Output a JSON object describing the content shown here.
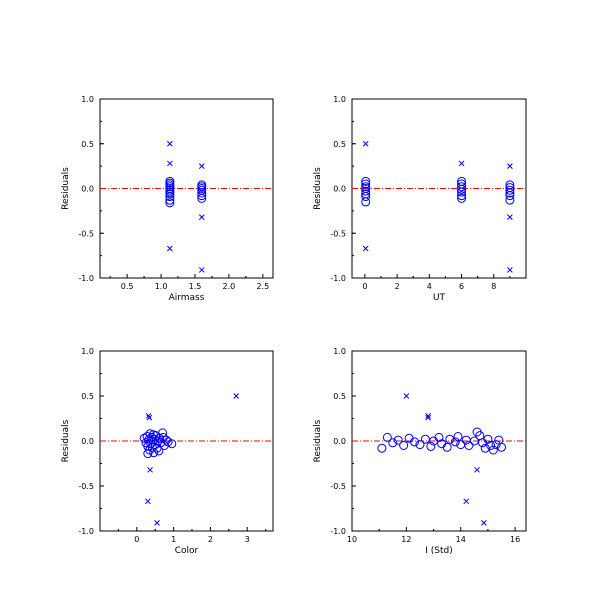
{
  "colors": {
    "marker": "#0000ff",
    "zero_line": "#ff0000",
    "axes": "#000000"
  },
  "chart_data": [
    {
      "type": "scatter",
      "xlabel": "Airmass",
      "ylabel": "Residuals",
      "xlim": [
        0.1,
        2.65
      ],
      "ylim": [
        -1.0,
        1.0
      ],
      "xticks": [
        "0.5",
        "1.0",
        "1.5",
        "2.0",
        "2.5"
      ],
      "xtick_values": [
        0.5,
        1.0,
        1.5,
        2.0,
        2.5
      ],
      "yticks": [
        "1.0",
        "0.5",
        "0.0",
        "-0.5",
        "-1.0"
      ],
      "ytick_values": [
        1.0,
        0.5,
        0.0,
        -0.5,
        -1.0
      ],
      "zero_line": 0.0,
      "series": [
        {
          "marker": "circle",
          "points": [
            [
              1.13,
              0.08
            ],
            [
              1.13,
              0.06
            ],
            [
              1.13,
              0.04
            ],
            [
              1.13,
              0.02
            ],
            [
              1.13,
              0.0
            ],
            [
              1.13,
              -0.02
            ],
            [
              1.13,
              -0.04
            ],
            [
              1.13,
              -0.06
            ],
            [
              1.13,
              -0.09
            ],
            [
              1.13,
              -0.13
            ],
            [
              1.13,
              -0.16
            ],
            [
              1.6,
              0.04
            ],
            [
              1.6,
              0.02
            ],
            [
              1.6,
              0.0
            ],
            [
              1.6,
              -0.02
            ],
            [
              1.6,
              -0.05
            ],
            [
              1.6,
              -0.08
            ],
            [
              1.6,
              -0.11
            ]
          ]
        },
        {
          "marker": "cross",
          "points": [
            [
              1.13,
              0.5
            ],
            [
              1.13,
              0.28
            ],
            [
              1.13,
              -0.67
            ],
            [
              1.6,
              0.25
            ],
            [
              1.6,
              -0.32
            ],
            [
              1.6,
              -0.91
            ]
          ]
        }
      ]
    },
    {
      "type": "scatter",
      "xlabel": "UT",
      "ylabel": "Residuals",
      "xlim": [
        -0.8,
        10.0
      ],
      "ylim": [
        -1.0,
        1.0
      ],
      "xticks": [
        "0",
        "2",
        "4",
        "6",
        "8"
      ],
      "xtick_values": [
        0,
        2,
        4,
        6,
        8
      ],
      "yticks": [
        "1.0",
        "0.5",
        "0.0",
        "-0.5",
        "-1.0"
      ],
      "ytick_values": [
        1.0,
        0.5,
        0.0,
        -0.5,
        -1.0
      ],
      "zero_line": 0.0,
      "series": [
        {
          "marker": "circle",
          "points": [
            [
              0.05,
              0.08
            ],
            [
              0.05,
              0.05
            ],
            [
              0.05,
              0.02
            ],
            [
              0.05,
              0.0
            ],
            [
              0.05,
              -0.03
            ],
            [
              0.05,
              -0.06
            ],
            [
              0.05,
              -0.09
            ],
            [
              0.05,
              -0.15
            ],
            [
              6.0,
              0.08
            ],
            [
              6.0,
              0.05
            ],
            [
              6.0,
              0.02
            ],
            [
              6.0,
              -0.01
            ],
            [
              6.0,
              -0.04
            ],
            [
              6.0,
              -0.08
            ],
            [
              6.0,
              -0.11
            ],
            [
              9.0,
              0.04
            ],
            [
              9.0,
              0.01
            ],
            [
              9.0,
              -0.02
            ],
            [
              9.0,
              -0.05
            ],
            [
              9.0,
              -0.08
            ],
            [
              9.0,
              -0.13
            ]
          ]
        },
        {
          "marker": "cross",
          "points": [
            [
              0.05,
              0.5
            ],
            [
              0.05,
              -0.67
            ],
            [
              6.0,
              0.28
            ],
            [
              9.0,
              0.25
            ],
            [
              9.0,
              -0.32
            ],
            [
              9.0,
              -0.91
            ]
          ]
        }
      ]
    },
    {
      "type": "scatter",
      "xlabel": "Color",
      "ylabel": "Residuals",
      "xlim": [
        -1.0,
        3.7
      ],
      "ylim": [
        -1.0,
        1.0
      ],
      "xticks": [
        "0",
        "1",
        "2",
        "3"
      ],
      "xtick_values": [
        0,
        1,
        2,
        3
      ],
      "yticks": [
        "1.0",
        "0.5",
        "0.0",
        "-0.5",
        "-1.0"
      ],
      "ytick_values": [
        1.0,
        0.5,
        0.0,
        -0.5,
        -1.0
      ],
      "zero_line": 0.0,
      "series": [
        {
          "marker": "circle",
          "points": [
            [
              0.2,
              0.03
            ],
            [
              0.25,
              -0.02
            ],
            [
              0.28,
              0.05
            ],
            [
              0.3,
              -0.06
            ],
            [
              0.32,
              0.01
            ],
            [
              0.35,
              -0.1
            ],
            [
              0.36,
              0.08
            ],
            [
              0.38,
              -0.03
            ],
            [
              0.4,
              0.04
            ],
            [
              0.42,
              -0.07
            ],
            [
              0.44,
              0.0
            ],
            [
              0.46,
              -0.13
            ],
            [
              0.48,
              0.02
            ],
            [
              0.5,
              -0.04
            ],
            [
              0.52,
              0.06
            ],
            [
              0.55,
              -0.08
            ],
            [
              0.58,
              0.0
            ],
            [
              0.6,
              -0.11
            ],
            [
              0.62,
              0.03
            ],
            [
              0.65,
              -0.02
            ],
            [
              0.7,
              0.09
            ],
            [
              0.72,
              0.04
            ],
            [
              0.75,
              -0.05
            ],
            [
              0.8,
              0.01
            ],
            [
              0.85,
              -0.01
            ],
            [
              0.95,
              -0.03
            ],
            [
              0.3,
              -0.14
            ],
            [
              0.45,
              0.07
            ]
          ]
        },
        {
          "marker": "cross",
          "points": [
            [
              0.32,
              0.28
            ],
            [
              0.34,
              0.26
            ],
            [
              0.36,
              -0.32
            ],
            [
              0.3,
              -0.67
            ],
            [
              0.55,
              -0.91
            ],
            [
              2.7,
              0.5
            ]
          ]
        }
      ]
    },
    {
      "type": "scatter",
      "xlabel": "I (Std)",
      "ylabel": "Residuals",
      "xlim": [
        10.0,
        16.4
      ],
      "ylim": [
        -1.0,
        1.0
      ],
      "xticks": [
        "10",
        "12",
        "14",
        "16"
      ],
      "xtick_values": [
        10,
        12,
        14,
        16
      ],
      "yticks": [
        "1.0",
        "0.5",
        "0.0",
        "-0.5",
        "-1.0"
      ],
      "ytick_values": [
        1.0,
        0.5,
        0.0,
        -0.5,
        -1.0
      ],
      "zero_line": 0.0,
      "series": [
        {
          "marker": "circle",
          "points": [
            [
              11.1,
              -0.08
            ],
            [
              11.3,
              0.04
            ],
            [
              11.5,
              -0.02
            ],
            [
              11.7,
              0.01
            ],
            [
              11.9,
              -0.05
            ],
            [
              12.1,
              0.03
            ],
            [
              12.3,
              -0.01
            ],
            [
              12.5,
              -0.04
            ],
            [
              12.7,
              0.02
            ],
            [
              12.9,
              -0.06
            ],
            [
              13.0,
              0.0
            ],
            [
              13.2,
              0.04
            ],
            [
              13.3,
              -0.03
            ],
            [
              13.5,
              -0.07
            ],
            [
              13.6,
              0.02
            ],
            [
              13.8,
              -0.01
            ],
            [
              13.9,
              0.05
            ],
            [
              14.0,
              -0.04
            ],
            [
              14.2,
              0.01
            ],
            [
              14.3,
              -0.05
            ],
            [
              14.5,
              0.0
            ],
            [
              14.6,
              0.1
            ],
            [
              14.7,
              0.06
            ],
            [
              14.8,
              -0.02
            ],
            [
              14.9,
              -0.08
            ],
            [
              15.0,
              0.02
            ],
            [
              15.1,
              -0.05
            ],
            [
              15.2,
              -0.1
            ],
            [
              15.3,
              -0.04
            ],
            [
              15.4,
              0.01
            ],
            [
              15.5,
              -0.07
            ]
          ]
        },
        {
          "marker": "cross",
          "points": [
            [
              12.0,
              0.5
            ],
            [
              12.8,
              0.28
            ],
            [
              12.8,
              0.26
            ],
            [
              14.2,
              -0.67
            ],
            [
              14.6,
              -0.32
            ],
            [
              14.85,
              -0.91
            ]
          ]
        }
      ]
    }
  ]
}
